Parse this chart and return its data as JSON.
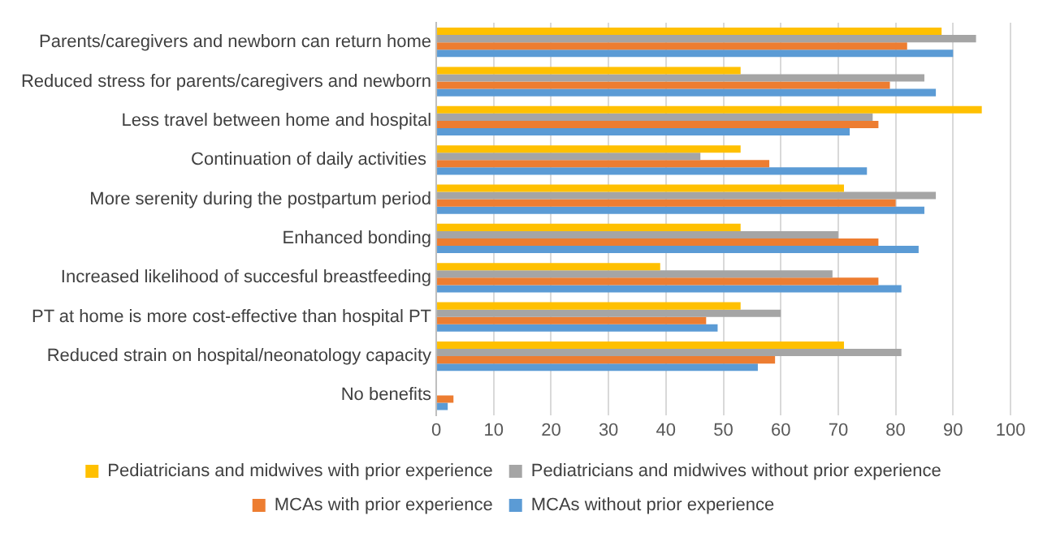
{
  "chart_data": {
    "type": "bar",
    "orientation": "horizontal",
    "categories": [
      "Parents/caregivers and newborn can return home",
      "Reduced stress for parents/caregivers and newborn",
      "Less travel between home and hospital",
      "Continuation of daily activities ",
      "More serenity during the postpartum period",
      "Enhanced bonding",
      "Increased likelihood of succesful breastfeeding",
      "PT at home is more cost-effective than hospital PT",
      "Reduced strain on hospital/neonatology capacity",
      "No benefits"
    ],
    "series": [
      {
        "name": "Pediatricians and midwives with prior experience",
        "color": "#ffc000",
        "values": [
          88,
          53,
          95,
          53,
          71,
          53,
          39,
          53,
          71,
          0
        ]
      },
      {
        "name": "Pediatricians and midwives without prior experience",
        "color": "#a5a5a5",
        "values": [
          94,
          85,
          76,
          46,
          87,
          70,
          69,
          60,
          81,
          0
        ]
      },
      {
        "name": "MCAs with prior experience",
        "color": "#ed7d31",
        "values": [
          82,
          79,
          77,
          58,
          80,
          77,
          77,
          47,
          59,
          3
        ]
      },
      {
        "name": "MCAs without prior experience",
        "color": "#5b9bd5",
        "values": [
          90,
          87,
          72,
          75,
          85,
          84,
          81,
          49,
          56,
          2
        ]
      }
    ],
    "xlim": [
      0,
      100
    ],
    "xticks": [
      0,
      10,
      20,
      30,
      40,
      50,
      60,
      70,
      80,
      90,
      100
    ],
    "grid": "x",
    "legend": "bottom"
  }
}
